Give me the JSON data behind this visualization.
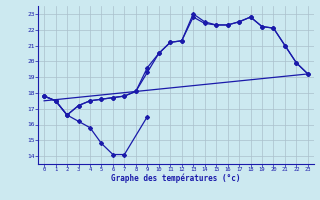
{
  "title": "Graphe des températures (°c)",
  "hours": [
    0,
    1,
    2,
    3,
    4,
    5,
    6,
    7,
    8,
    9,
    10,
    11,
    12,
    13,
    14,
    15,
    16,
    17,
    18,
    19,
    20,
    21,
    22,
    23
  ],
  "ylim": [
    13.5,
    23.5
  ],
  "xlim": [
    -0.5,
    23.5
  ],
  "yticks": [
    14,
    15,
    16,
    17,
    18,
    19,
    20,
    21,
    22,
    23
  ],
  "bg_color": "#cce9f0",
  "grid_color": "#aac0cc",
  "line_color": "#1a1aaa",
  "line1_x": [
    0,
    1,
    2,
    3,
    4,
    5,
    6,
    7,
    9
  ],
  "line1_y": [
    17.8,
    17.5,
    16.6,
    16.2,
    15.8,
    14.8,
    14.1,
    14.1,
    16.5
  ],
  "line2_x": [
    0,
    1,
    2,
    3,
    4,
    5,
    6,
    7,
    8,
    9,
    10,
    11,
    12,
    13,
    14,
    15,
    16,
    17,
    18,
    19,
    20,
    21,
    22,
    23
  ],
  "line2_y": [
    17.8,
    17.5,
    16.6,
    17.2,
    17.5,
    17.6,
    17.7,
    17.8,
    18.1,
    19.3,
    20.5,
    21.2,
    21.3,
    22.8,
    22.4,
    22.3,
    22.3,
    22.5,
    22.8,
    22.2,
    22.1,
    21.0,
    19.9,
    19.2
  ],
  "line3_x": [
    0,
    1,
    2,
    3,
    4,
    5,
    6,
    7,
    8,
    9,
    10,
    11,
    12,
    13,
    14,
    15,
    16,
    17,
    18,
    19,
    20,
    21,
    22,
    23
  ],
  "line3_y": [
    17.8,
    17.5,
    16.6,
    17.2,
    17.5,
    17.6,
    17.7,
    17.8,
    18.1,
    19.6,
    20.5,
    21.2,
    21.3,
    23.0,
    22.5,
    22.3,
    22.3,
    22.5,
    22.8,
    22.2,
    22.1,
    21.0,
    19.9,
    19.2
  ],
  "line4_x": [
    0,
    23
  ],
  "line4_y": [
    17.5,
    19.2
  ]
}
